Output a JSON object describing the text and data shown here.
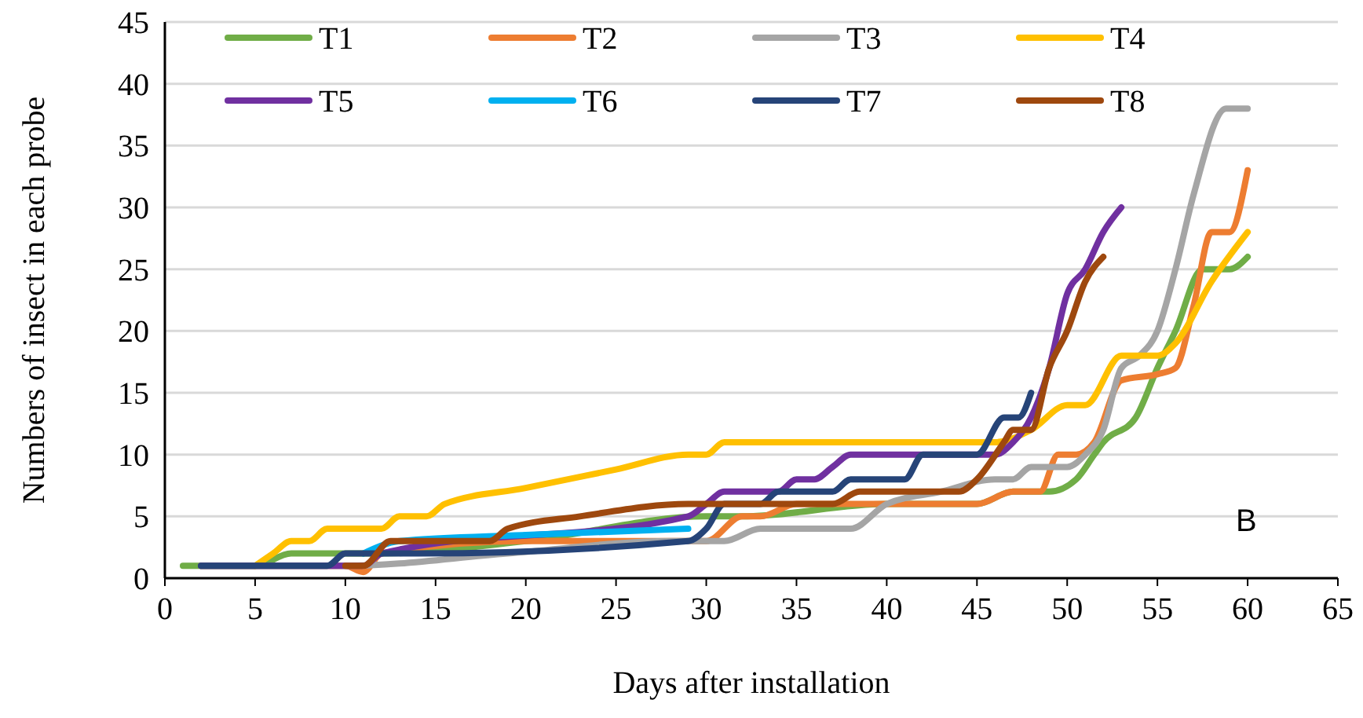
{
  "chart_data": {
    "type": "line",
    "xlabel": "Days after installation",
    "ylabel": "Numbers of insect in each probe",
    "xlim": [
      0,
      65
    ],
    "xticks": [
      0,
      5,
      10,
      15,
      20,
      25,
      30,
      35,
      40,
      45,
      50,
      55,
      60,
      65
    ],
    "ylim": [
      0,
      45
    ],
    "yticks": [
      0,
      5,
      10,
      15,
      20,
      25,
      30,
      35,
      40,
      45
    ],
    "grid": "y",
    "legend": "top",
    "line_style": "solid",
    "annotations": [
      "B"
    ],
    "series": [
      {
        "name": "T1",
        "color": "#70ad47",
        "x": [
          1,
          2,
          5,
          7,
          12,
          20,
          30,
          32,
          40,
          45,
          47,
          49,
          50.5,
          51.5,
          52,
          53.8,
          55,
          56,
          57.5,
          59,
          60
        ],
        "values": [
          1,
          1,
          1,
          2,
          2,
          3,
          5,
          5,
          6,
          6,
          7,
          7,
          8,
          10,
          11,
          13,
          17,
          20,
          25,
          25,
          26
        ]
      },
      {
        "name": "T2",
        "color": "#ed7d31",
        "x": [
          2,
          10,
          11,
          12,
          20,
          28,
          30,
          32,
          33,
          35,
          45,
          47,
          48.5,
          49.5,
          50.5,
          51.5,
          53,
          55,
          56,
          57,
          58,
          59,
          60
        ],
        "values": [
          1,
          1,
          0.5,
          2,
          3,
          3,
          3,
          5,
          5,
          6,
          6,
          7,
          7,
          10,
          10,
          11,
          16,
          16.5,
          17,
          22,
          28,
          28,
          33
        ]
      },
      {
        "name": "T3",
        "color": "#a5a5a5",
        "x": [
          2,
          10,
          19,
          28,
          31,
          33,
          38,
          40,
          43,
          46,
          47,
          48,
          50,
          51,
          52,
          53,
          54,
          55,
          56,
          57,
          58.8,
          60
        ],
        "values": [
          1,
          1,
          2,
          3,
          3,
          4,
          4,
          6,
          7,
          8,
          8,
          9,
          9,
          10,
          12,
          17,
          18,
          20,
          25,
          31,
          38,
          38
        ]
      },
      {
        "name": "T4",
        "color": "#ffc000",
        "x": [
          5,
          6,
          7,
          8,
          9,
          10,
          12,
          13,
          14.5,
          15.5,
          20,
          25,
          29,
          30,
          31,
          46,
          48,
          50,
          51,
          53,
          55,
          56,
          58,
          60
        ],
        "values": [
          1,
          2,
          3,
          3,
          4,
          4,
          4,
          5,
          5,
          6,
          7.3,
          8.8,
          10,
          10,
          11,
          11,
          12,
          14,
          14,
          18,
          18,
          19,
          24,
          28
        ]
      },
      {
        "name": "T5",
        "color": "#7030a0",
        "x": [
          2,
          11,
          12,
          29,
          30,
          31,
          34,
          35,
          36,
          37,
          38,
          46,
          47,
          48,
          49,
          50,
          51,
          52,
          53
        ],
        "values": [
          1,
          1,
          2,
          5,
          6,
          7,
          7,
          8,
          8,
          9,
          10,
          10,
          11,
          13,
          17,
          23,
          25,
          28,
          30
        ]
      },
      {
        "name": "T6",
        "color": "#00b0f0",
        "x": [
          11,
          13,
          20,
          29
        ],
        "values": [
          2,
          3,
          3.5,
          4
        ]
      },
      {
        "name": "T7",
        "color": "#264478",
        "x": [
          2,
          9,
          10,
          11,
          14,
          29,
          30,
          31,
          33,
          34,
          37,
          38,
          40,
          41,
          42,
          45,
          46.5,
          47.3,
          48
        ],
        "values": [
          1,
          1,
          2,
          2,
          2,
          3,
          4,
          6,
          6,
          7,
          7,
          8,
          8,
          8,
          10,
          10,
          13,
          13,
          15
        ]
      },
      {
        "name": "T8",
        "color": "#9e480e",
        "x": [
          10,
          11,
          12.5,
          18,
          19,
          23,
          29,
          37,
          38.5,
          44,
          45,
          46.5,
          47,
          48,
          49,
          50,
          51,
          52
        ],
        "values": [
          1,
          1,
          3,
          3,
          4,
          5,
          6,
          6,
          7,
          7,
          8,
          11,
          12,
          12,
          17,
          20,
          24,
          26
        ]
      }
    ]
  }
}
